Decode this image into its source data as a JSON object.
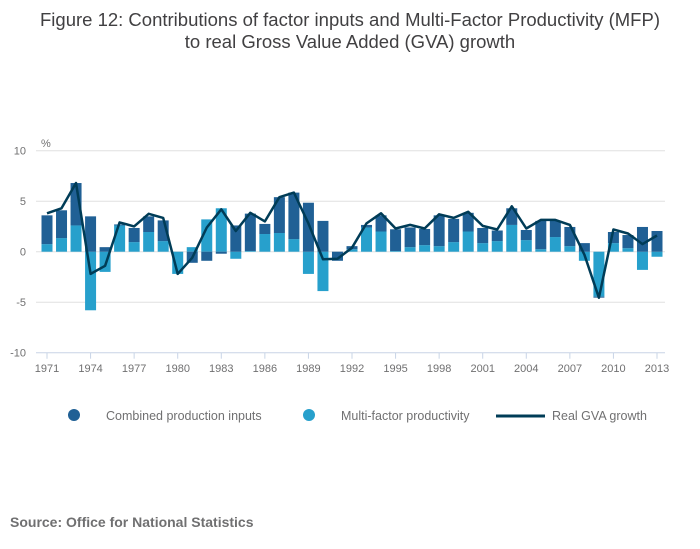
{
  "chart_data": {
    "type": "bar",
    "stacked": true,
    "title": "Figure 12: Contributions of factor inputs and Multi-Factor Productivity (MFP)",
    "title_line2": "to real Gross Value Added (GVA) growth",
    "ylabel": "%",
    "xlabel": "",
    "ylim": [
      -10,
      10
    ],
    "yticks": [
      10,
      5,
      0,
      -5,
      -10
    ],
    "grid": true,
    "legend_position": "bottom",
    "x": [
      1971,
      1972,
      1973,
      1974,
      1975,
      1976,
      1977,
      1978,
      1979,
      1980,
      1981,
      1982,
      1983,
      1984,
      1985,
      1986,
      1987,
      1988,
      1989,
      1990,
      1991,
      1992,
      1993,
      1994,
      1995,
      1996,
      1997,
      1998,
      1999,
      2000,
      2001,
      2002,
      2003,
      2004,
      2005,
      2006,
      2007,
      2008,
      2009,
      2010,
      2011,
      2012,
      2013
    ],
    "xtick_labels": [
      "1971",
      "1974",
      "1977",
      "1980",
      "1983",
      "1986",
      "1989",
      "1992",
      "1995",
      "1998",
      "2001",
      "2004",
      "2007",
      "2010",
      "2013"
    ],
    "series": [
      {
        "name": "Combined production inputs",
        "type": "bar",
        "color": "#206095",
        "values": [
          2.85,
          2.75,
          4.2,
          3.5,
          0.45,
          0.1,
          1.4,
          1.55,
          2.05,
          0,
          -1.1,
          -0.9,
          -0.2,
          2.6,
          3.7,
          1.0,
          3.55,
          4.6,
          4.85,
          3.05,
          -0.9,
          0.3,
          0.25,
          1.6,
          2.15,
          1.95,
          1.6,
          3.05,
          2.3,
          1.85,
          1.5,
          1.05,
          1.65,
          1.0,
          2.8,
          1.6,
          1.9,
          0.85,
          -0.1,
          1.1,
          1.3,
          2.45,
          2.05
        ]
      },
      {
        "name": "Multi-factor productivity",
        "type": "bar",
        "color": "#27a0cc",
        "values": [
          0.75,
          1.35,
          2.6,
          -5.8,
          -2.0,
          2.6,
          0.95,
          1.95,
          1.05,
          -2.2,
          0.45,
          3.2,
          4.3,
          -0.7,
          0.07,
          1.75,
          1.85,
          1.25,
          -2.2,
          -3.9,
          0,
          0.25,
          2.4,
          2.0,
          0.07,
          0.45,
          0.65,
          0.55,
          0.95,
          2.0,
          0.85,
          1.05,
          2.65,
          1.15,
          0.25,
          1.45,
          0.55,
          -0.9,
          -4.45,
          0.85,
          0.35,
          -1.8,
          -0.5
        ]
      },
      {
        "name": "Real GVA growth",
        "type": "line",
        "color": "#003c57",
        "values": [
          3.8,
          4.3,
          6.8,
          -2.2,
          -1.4,
          2.9,
          2.5,
          3.75,
          3.35,
          -2.2,
          -0.6,
          2.4,
          4.2,
          2.05,
          3.85,
          3.0,
          5.4,
          5.85,
          2.8,
          -0.75,
          -0.7,
          0.4,
          2.8,
          3.8,
          2.3,
          2.65,
          2.3,
          3.7,
          3.35,
          3.95,
          2.55,
          2.2,
          4.5,
          2.3,
          3.15,
          3.15,
          2.65,
          -0.3,
          -4.55,
          2.2,
          1.8,
          0.75,
          1.6
        ]
      }
    ]
  },
  "source": "Source: Office for National Statistics"
}
